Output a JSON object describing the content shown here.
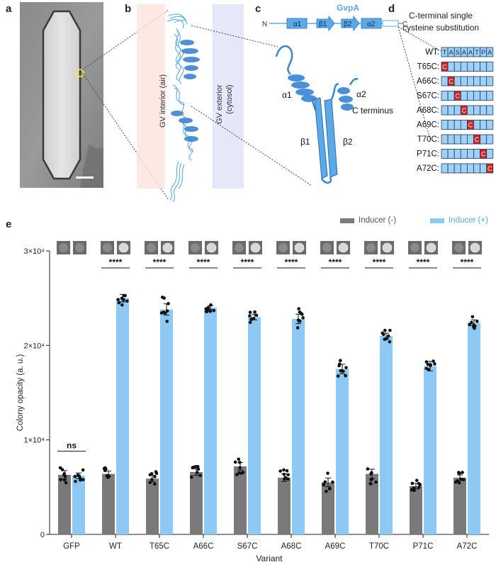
{
  "panels": {
    "a": "a",
    "b": "b",
    "c": "c",
    "d": "d",
    "e": "e"
  },
  "panel_b": {
    "interior_label": "GV interior (air)",
    "exterior_label": "GV exterior\n(cytosol)"
  },
  "panel_c": {
    "protein_name": "GvpA",
    "n_term": "N",
    "c_term": "C",
    "topology": [
      "α1",
      "β1",
      "β2",
      "α2"
    ],
    "alpha1": "α1",
    "alpha2": "α2",
    "beta1": "β1",
    "beta2": "β2",
    "c_terminus": "C terminus"
  },
  "panel_d": {
    "title_line1": "C-terminal single",
    "title_line2": "cysteine substitution",
    "wt_label": "WT:",
    "wt_sequence": [
      "T",
      "A",
      "S",
      "A",
      "A",
      "T",
      "P",
      "A"
    ],
    "substitution_letter": "C",
    "rows": [
      {
        "label": "T65C:",
        "position": 0
      },
      {
        "label": "A66C:",
        "position": 1
      },
      {
        "label": "S67C:",
        "position": 2
      },
      {
        "label": "A68C:",
        "position": 3
      },
      {
        "label": "A69C:",
        "position": 4
      },
      {
        "label": "T70C:",
        "position": 5
      },
      {
        "label": "P71C:",
        "position": 6
      },
      {
        "label": "A72C:",
        "position": 7
      }
    ]
  },
  "colors": {
    "inducer_minus": "#7a7a7a",
    "inducer_plus": "#8ec9f5",
    "helix": "#4a90d9",
    "cys_red": "#d62020",
    "seq_box": "#9fd0f5"
  },
  "chart_data": {
    "type": "bar",
    "xlabel": "Variant",
    "ylabel": "Colony opacity (a. u.)",
    "ylim": [
      0,
      30000
    ],
    "yticks": [
      {
        "value": 0,
        "label": "0"
      },
      {
        "value": 10000,
        "label": "1×10⁴"
      },
      {
        "value": 20000,
        "label": "2×10⁴"
      },
      {
        "value": 30000,
        "label": "3×10⁴"
      }
    ],
    "categories": [
      "GFP",
      "WT",
      "T65C",
      "A66C",
      "S67C",
      "A68C",
      "A69C",
      "T70C",
      "P71C",
      "A72C"
    ],
    "series": [
      {
        "name": "Inducer (-)",
        "values": [
          6300,
          6400,
          5900,
          6600,
          7200,
          6000,
          5500,
          6400,
          5100,
          6000
        ],
        "errors": [
          450,
          300,
          350,
          350,
          400,
          400,
          450,
          500,
          300,
          300
        ]
      },
      {
        "name": "Inducer (+)",
        "values": [
          6200,
          25000,
          23800,
          24000,
          23000,
          22800,
          17500,
          21000,
          17800,
          22400
        ],
        "errors": [
          300,
          400,
          600,
          200,
          300,
          500,
          500,
          300,
          500,
          300
        ]
      }
    ],
    "significance": [
      "ns",
      "****",
      "****",
      "****",
      "****",
      "****",
      "****",
      "****",
      "****",
      "****"
    ],
    "legend_position": "top-right"
  }
}
